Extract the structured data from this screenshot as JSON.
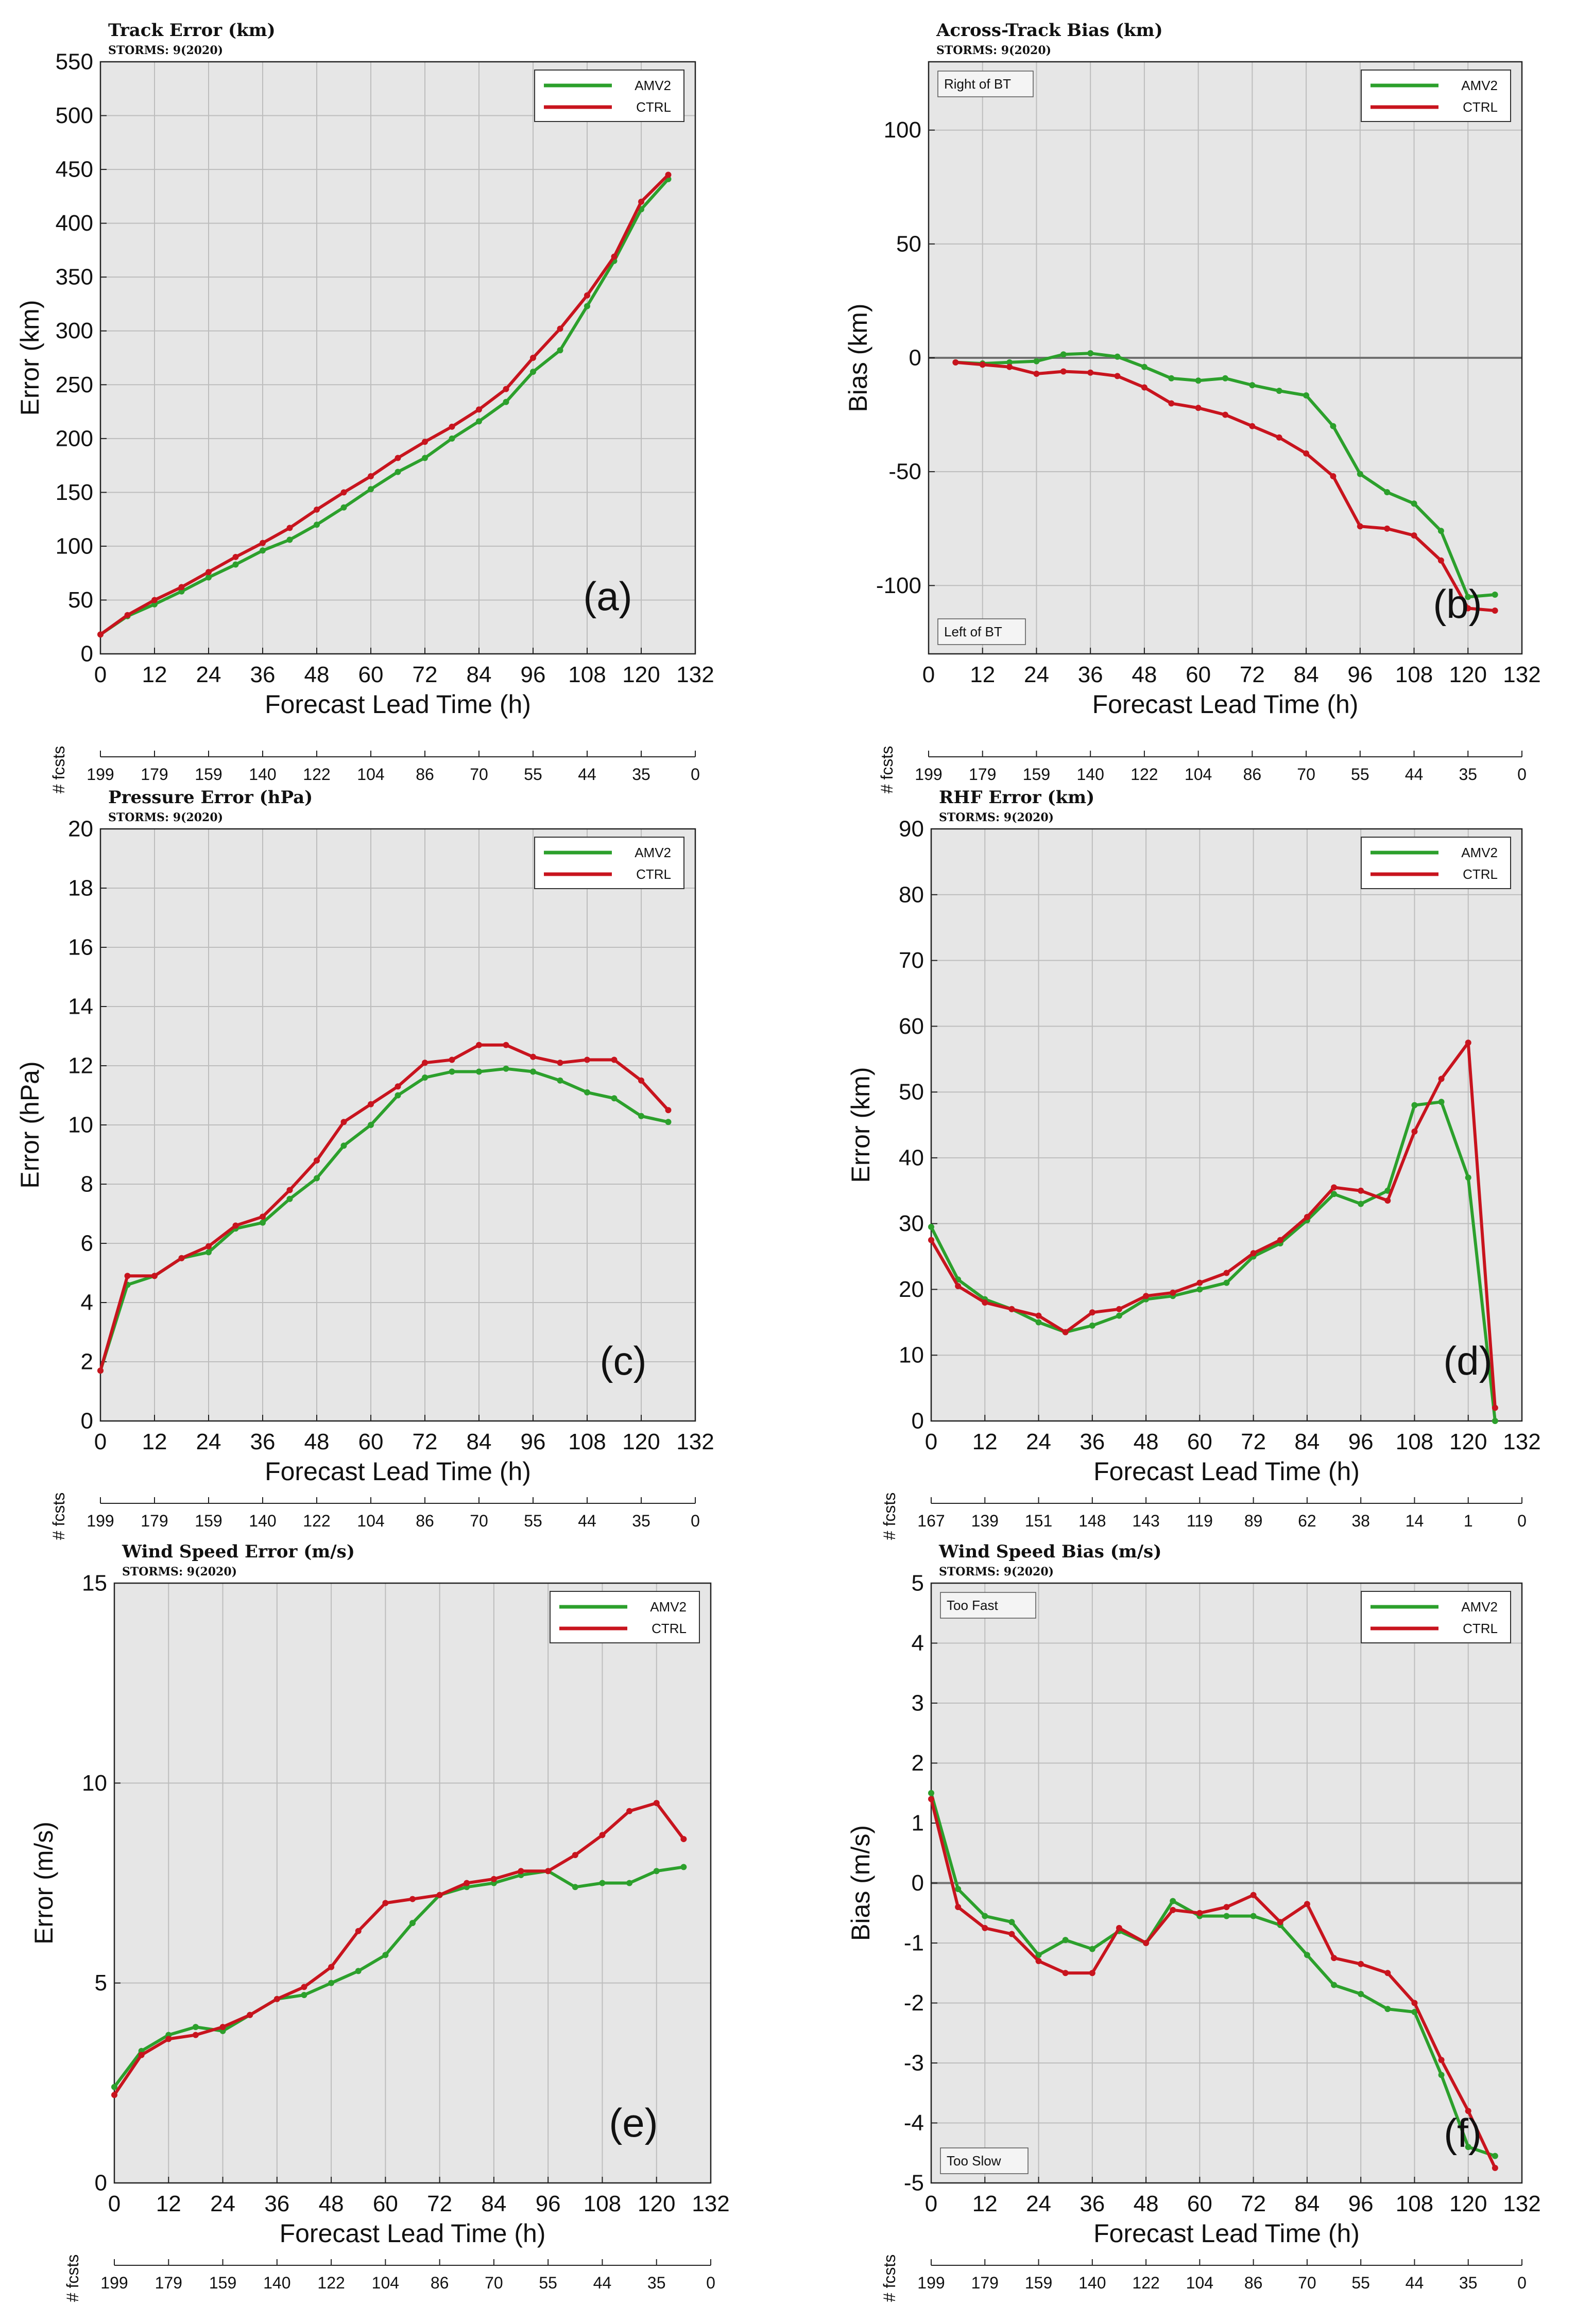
{
  "figure": {
    "colors": {
      "AMV2": "#2ca02c",
      "CTRL": "#c8141e",
      "panel_bg": "#e6e6e6",
      "grid": "#bdbdbd",
      "zero_line": "#707070"
    },
    "common": {
      "xlabel": "Forecast Lead Time (h)",
      "x_ticks": [
        0,
        12,
        24,
        36,
        48,
        60,
        72,
        84,
        96,
        108,
        120,
        132
      ],
      "fcst_label": "# fcsts",
      "storms": "STORMS: 9(2020)",
      "legend": [
        "AMV2",
        "CTRL"
      ]
    }
  },
  "chart_data": [
    {
      "id": "a",
      "type": "line",
      "title": "Track Error (km)",
      "subtitle": "STORMS: 9(2020)",
      "panel_label": "(a)",
      "ylabel": "Error (km)",
      "xlabel": "Forecast Lead Time (h)",
      "xlim": [
        0,
        132
      ],
      "ylim": [
        0,
        550
      ],
      "y_ticks": [
        0,
        50,
        100,
        150,
        200,
        250,
        300,
        350,
        400,
        450,
        500,
        550
      ],
      "x_ticks": [
        0,
        12,
        24,
        36,
        48,
        60,
        72,
        84,
        96,
        108,
        120,
        132
      ],
      "fcst_counts": [
        "199",
        "179",
        "159",
        "140",
        "122",
        "104",
        "86",
        "70",
        "55",
        "44",
        "35",
        "0"
      ],
      "legend": "top-right",
      "x": [
        0,
        6,
        12,
        18,
        24,
        30,
        36,
        42,
        48,
        54,
        60,
        66,
        72,
        78,
        84,
        90,
        96,
        102,
        108,
        114,
        120,
        126
      ],
      "series": [
        {
          "name": "AMV2",
          "values": [
            18,
            35,
            46,
            58,
            71,
            83,
            96,
            106,
            120,
            136,
            153,
            169,
            182,
            200,
            216,
            234,
            262,
            282,
            323,
            365,
            413,
            441
          ]
        },
        {
          "name": "CTRL",
          "values": [
            18,
            36,
            50,
            62,
            76,
            90,
            103,
            117,
            134,
            150,
            165,
            182,
            197,
            211,
            227,
            246,
            275,
            302,
            333,
            369,
            420,
            445
          ]
        }
      ]
    },
    {
      "id": "b",
      "type": "line",
      "title": "Across-Track Bias (km)",
      "subtitle": "STORMS: 9(2020)",
      "panel_label": "(b)",
      "ylabel": "Bias (km)",
      "xlabel": "Forecast Lead Time (h)",
      "xlim": [
        0,
        132
      ],
      "ylim": [
        -130,
        130
      ],
      "y_ticks": [
        -100,
        -50,
        0,
        50,
        100
      ],
      "x_ticks": [
        0,
        12,
        24,
        36,
        48,
        60,
        72,
        84,
        96,
        108,
        120,
        132
      ],
      "fcst_counts": [
        "199",
        "179",
        "159",
        "140",
        "122",
        "104",
        "86",
        "70",
        "55",
        "44",
        "35",
        "0"
      ],
      "legend": "top-right",
      "zero_line": true,
      "annot_top": "Right of BT",
      "annot_bottom": "Left of BT",
      "x": [
        6,
        12,
        18,
        24,
        30,
        36,
        42,
        48,
        54,
        60,
        66,
        72,
        78,
        84,
        90,
        96,
        102,
        108,
        114,
        120,
        126
      ],
      "series": [
        {
          "name": "AMV2",
          "values": [
            -2,
            -2.5,
            -2,
            -1.5,
            1.5,
            2,
            0.5,
            -4,
            -9,
            -10,
            -9,
            -12,
            -14.5,
            -16.5,
            -30,
            -51,
            -59,
            -64,
            -76,
            -105,
            -104
          ]
        },
        {
          "name": "CTRL",
          "values": [
            -2,
            -3,
            -4,
            -7,
            -6,
            -6.5,
            -8,
            -13,
            -20,
            -22,
            -25,
            -30,
            -35,
            -42,
            -52,
            -74,
            -75,
            -78,
            -89,
            -110,
            -111
          ]
        }
      ]
    },
    {
      "id": "c",
      "type": "line",
      "title": "Pressure Error (hPa)",
      "subtitle": "STORMS: 9(2020)",
      "panel_label": "(c)",
      "ylabel": "Error (hPa)",
      "xlabel": "Forecast Lead Time (h)",
      "xlim": [
        0,
        132
      ],
      "ylim": [
        0,
        20
      ],
      "y_ticks": [
        0,
        2,
        4,
        6,
        8,
        10,
        12,
        14,
        16,
        18,
        20
      ],
      "x_ticks": [
        0,
        12,
        24,
        36,
        48,
        60,
        72,
        84,
        96,
        108,
        120,
        132
      ],
      "fcst_counts": [
        "199",
        "179",
        "159",
        "140",
        "122",
        "104",
        "86",
        "70",
        "55",
        "44",
        "35",
        "0"
      ],
      "legend": "top-right",
      "x": [
        0,
        6,
        12,
        18,
        24,
        30,
        36,
        42,
        48,
        54,
        60,
        66,
        72,
        78,
        84,
        90,
        96,
        102,
        108,
        114,
        120,
        126
      ],
      "series": [
        {
          "name": "AMV2",
          "values": [
            1.7,
            4.6,
            4.9,
            5.5,
            5.7,
            6.5,
            6.7,
            7.5,
            8.2,
            9.3,
            10.0,
            11.0,
            11.6,
            11.8,
            11.8,
            11.9,
            11.8,
            11.5,
            11.1,
            10.9,
            10.3,
            10.1
          ]
        },
        {
          "name": "CTRL",
          "values": [
            1.7,
            4.9,
            4.9,
            5.5,
            5.9,
            6.6,
            6.9,
            7.8,
            8.8,
            10.1,
            10.7,
            11.3,
            12.1,
            12.2,
            12.7,
            12.7,
            12.3,
            12.1,
            12.2,
            12.2,
            11.5,
            10.5
          ]
        }
      ]
    },
    {
      "id": "d",
      "type": "line",
      "title": "RHF Error (km)",
      "subtitle": "STORMS: 9(2020)",
      "panel_label": "(d)",
      "ylabel": "Error (km)",
      "xlabel": "Forecast Lead Time (h)",
      "xlim": [
        0,
        132
      ],
      "ylim": [
        0,
        90
      ],
      "y_ticks": [
        0,
        10,
        20,
        30,
        40,
        50,
        60,
        70,
        80,
        90
      ],
      "x_ticks": [
        0,
        12,
        24,
        36,
        48,
        60,
        72,
        84,
        96,
        108,
        120,
        132
      ],
      "fcst_counts": [
        "167",
        "139",
        "151",
        "148",
        "143",
        "119",
        "89",
        "62",
        "38",
        "14",
        "1",
        "0"
      ],
      "legend": "top-right",
      "x": [
        0,
        6,
        12,
        18,
        24,
        30,
        36,
        42,
        48,
        54,
        60,
        66,
        72,
        78,
        84,
        90,
        96,
        102,
        108,
        114,
        120,
        126
      ],
      "series": [
        {
          "name": "AMV2",
          "values": [
            29.5,
            21.5,
            18.5,
            17.0,
            15.0,
            13.5,
            14.5,
            16.0,
            18.5,
            19.0,
            20.0,
            21.0,
            25.0,
            27.0,
            30.5,
            34.5,
            33.0,
            35.0,
            48.0,
            48.5,
            37.0,
            0
          ]
        },
        {
          "name": "CTRL",
          "values": [
            27.5,
            20.5,
            18.0,
            17.0,
            16.0,
            13.5,
            16.5,
            17.0,
            19.0,
            19.5,
            21.0,
            22.5,
            25.5,
            27.5,
            31.0,
            35.5,
            35.0,
            33.5,
            44.0,
            52.0,
            57.5,
            2.0
          ]
        }
      ]
    },
    {
      "id": "e",
      "type": "line",
      "title": "Wind Speed Error (m/s)",
      "subtitle": "STORMS: 9(2020)",
      "panel_label": "(e)",
      "ylabel": "Error (m/s)",
      "xlabel": "Forecast Lead Time (h)",
      "xlim": [
        0,
        132
      ],
      "ylim": [
        0,
        15
      ],
      "y_ticks": [
        0,
        5,
        10,
        15
      ],
      "x_ticks": [
        0,
        12,
        24,
        36,
        48,
        60,
        72,
        84,
        96,
        108,
        120,
        132
      ],
      "fcst_counts": [
        "199",
        "179",
        "159",
        "140",
        "122",
        "104",
        "86",
        "70",
        "55",
        "44",
        "35",
        "0"
      ],
      "legend": "top-right",
      "x": [
        0,
        6,
        12,
        18,
        24,
        30,
        36,
        42,
        48,
        54,
        60,
        66,
        72,
        78,
        84,
        90,
        96,
        102,
        108,
        114,
        120,
        126
      ],
      "series": [
        {
          "name": "AMV2",
          "values": [
            2.4,
            3.3,
            3.7,
            3.9,
            3.8,
            4.2,
            4.6,
            4.7,
            5.0,
            5.3,
            5.7,
            6.5,
            7.2,
            7.4,
            7.5,
            7.7,
            7.8,
            7.4,
            7.5,
            7.5,
            7.8,
            7.9
          ]
        },
        {
          "name": "CTRL",
          "values": [
            2.2,
            3.2,
            3.6,
            3.7,
            3.9,
            4.2,
            4.6,
            4.9,
            5.4,
            6.3,
            7.0,
            7.1,
            7.2,
            7.5,
            7.6,
            7.8,
            7.8,
            8.2,
            8.7,
            9.3,
            9.5,
            8.6
          ]
        }
      ]
    },
    {
      "id": "f",
      "type": "line",
      "title": "Wind Speed Bias (m/s)",
      "subtitle": "STORMS: 9(2020)",
      "panel_label": "(f)",
      "ylabel": "Bias (m/s)",
      "xlabel": "Forecast Lead Time (h)",
      "xlim": [
        0,
        132
      ],
      "ylim": [
        -5,
        5
      ],
      "y_ticks": [
        -5,
        -4,
        -3,
        -2,
        -1,
        0,
        1,
        2,
        3,
        4,
        5
      ],
      "x_ticks": [
        0,
        12,
        24,
        36,
        48,
        60,
        72,
        84,
        96,
        108,
        120,
        132
      ],
      "fcst_counts": [
        "199",
        "179",
        "159",
        "140",
        "122",
        "104",
        "86",
        "70",
        "55",
        "44",
        "35",
        "0"
      ],
      "legend": "top-right",
      "zero_line": true,
      "annot_top": "Too Fast",
      "annot_bottom": "Too Slow",
      "x": [
        0,
        6,
        12,
        18,
        24,
        30,
        36,
        42,
        48,
        54,
        60,
        66,
        72,
        78,
        84,
        90,
        96,
        102,
        108,
        114,
        120,
        126
      ],
      "series": [
        {
          "name": "AMV2",
          "values": [
            1.5,
            -0.1,
            -0.55,
            -0.65,
            -1.2,
            -0.95,
            -1.1,
            -0.8,
            -1.0,
            -0.3,
            -0.55,
            -0.55,
            -0.55,
            -0.7,
            -1.2,
            -1.7,
            -1.85,
            -2.1,
            -2.15,
            -3.2,
            -4.4,
            -4.55
          ]
        },
        {
          "name": "CTRL",
          "values": [
            1.4,
            -0.4,
            -0.75,
            -0.85,
            -1.3,
            -1.5,
            -1.5,
            -0.75,
            -1.0,
            -0.45,
            -0.5,
            -0.4,
            -0.2,
            -0.65,
            -0.35,
            -1.25,
            -1.35,
            -1.5,
            -2.0,
            -2.95,
            -3.8,
            -4.75
          ]
        }
      ]
    }
  ]
}
